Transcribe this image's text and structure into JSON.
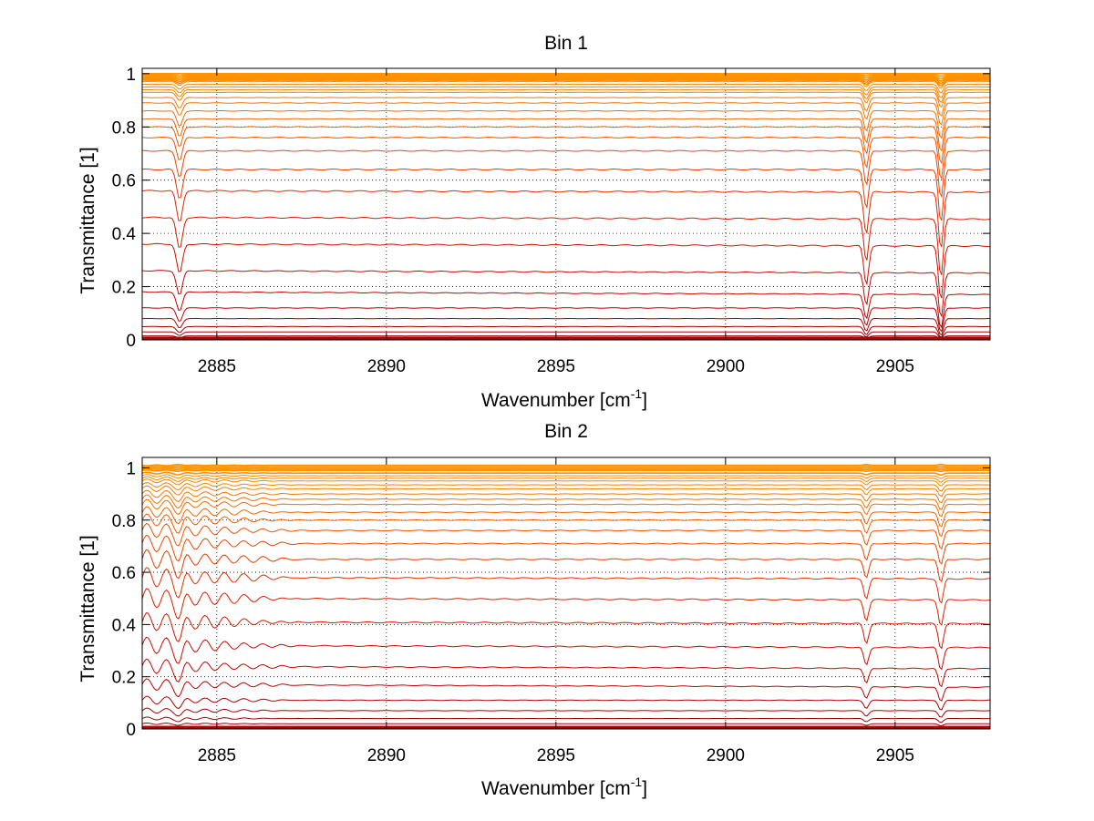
{
  "chart_data": [
    {
      "type": "line",
      "title": "Bin 1",
      "xlabel_base": "Wavenumber [cm",
      "xlabel_sup": "-1",
      "xlabel_end": "]",
      "ylabel": "Transmittance [1]",
      "xlim": [
        2882.8,
        2907.8
      ],
      "ylim": [
        0,
        1.02
      ],
      "xticks": [
        2885,
        2890,
        2895,
        2900,
        2905
      ],
      "xtick_labels": [
        "2885",
        "2890",
        "2895",
        "2900",
        "2905"
      ],
      "yticks": [
        0,
        0.2,
        0.4,
        0.6,
        0.8,
        1
      ],
      "ytick_labels": [
        "0",
        "0.2",
        "0.4",
        "0.6",
        "0.8",
        "1"
      ],
      "grid": true,
      "baseline_levels": [
        1.0,
        0.995,
        0.99,
        0.985,
        0.98,
        0.975,
        0.97,
        0.96,
        0.95,
        0.94,
        0.93,
        0.91,
        0.89,
        0.86,
        0.83,
        0.8,
        0.76,
        0.71,
        0.64,
        0.56,
        0.46,
        0.36,
        0.26,
        0.18,
        0.12,
        0.08,
        0.05,
        0.03,
        0.015,
        0.006,
        0.002
      ],
      "absorption_lines": [
        {
          "center": 2883.9,
          "depth": 0.12,
          "width": 0.12
        },
        {
          "center": 2904.15,
          "depth": 0.16,
          "width": 0.1
        },
        {
          "center": 2906.35,
          "depth": 0.22,
          "width": 0.1
        }
      ],
      "edge_ripple": {
        "x_end": 2883.5,
        "amplitude": 0.0
      }
    },
    {
      "type": "line",
      "title": "Bin 2",
      "xlabel_base": "Wavenumber [cm",
      "xlabel_sup": "-1",
      "xlabel_end": "]",
      "ylabel": "Transmittance [1]",
      "xlim": [
        2882.8,
        2907.8
      ],
      "ylim": [
        0,
        1.04
      ],
      "xticks": [
        2885,
        2890,
        2895,
        2900,
        2905
      ],
      "xtick_labels": [
        "2885",
        "2890",
        "2895",
        "2900",
        "2905"
      ],
      "yticks": [
        0,
        0.2,
        0.4,
        0.6,
        0.8,
        1
      ],
      "ytick_labels": [
        "0",
        "0.2",
        "0.4",
        "0.6",
        "0.8",
        "1"
      ],
      "grid": true,
      "baseline_levels": [
        1.01,
        1.005,
        1.0,
        0.995,
        0.99,
        0.98,
        0.97,
        0.96,
        0.95,
        0.935,
        0.92,
        0.9,
        0.88,
        0.86,
        0.83,
        0.8,
        0.76,
        0.71,
        0.65,
        0.58,
        0.5,
        0.41,
        0.32,
        0.24,
        0.17,
        0.11,
        0.07,
        0.04,
        0.02,
        0.008,
        0.003
      ],
      "absorption_lines": [
        {
          "center": 2883.9,
          "depth": 0.06,
          "width": 0.15
        },
        {
          "center": 2904.15,
          "depth": 0.08,
          "width": 0.1
        },
        {
          "center": 2906.35,
          "depth": 0.1,
          "width": 0.1
        }
      ],
      "edge_ripple": {
        "x_end": 2887.5,
        "amplitude": 0.04
      }
    }
  ]
}
